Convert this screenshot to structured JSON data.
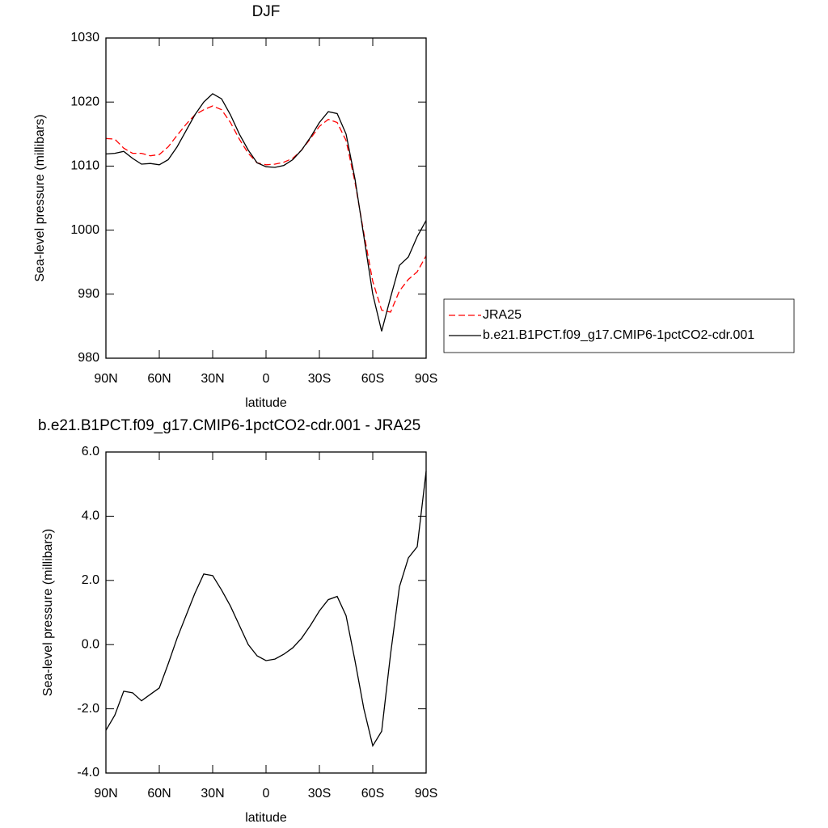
{
  "chart_data": [
    {
      "type": "line",
      "title": "DJF",
      "xlabel": "latitude",
      "ylabel": "Sea-level pressure (millibars)",
      "x": [
        90,
        85,
        80,
        75,
        70,
        65,
        60,
        55,
        50,
        45,
        40,
        35,
        30,
        25,
        20,
        15,
        10,
        5,
        0,
        -5,
        -10,
        -15,
        -20,
        -25,
        -30,
        -35,
        -40,
        -45,
        -50,
        -55,
        -60,
        -65,
        -70,
        -75,
        -80,
        -85,
        -90
      ],
      "series": [
        {
          "name": "JRA25",
          "color": "#ff0000",
          "dash": "dashed",
          "values": [
            1014.3,
            1014.2,
            1012.8,
            1012,
            1012,
            1011.6,
            1011.8,
            1013,
            1014.8,
            1016.5,
            1018,
            1018.8,
            1019.4,
            1018.8,
            1016.8,
            1014.2,
            1012,
            1010.5,
            1010.2,
            1010.3,
            1010.6,
            1011.2,
            1012.5,
            1014.3,
            1016.2,
            1017.3,
            1016.8,
            1014,
            1007.5,
            999.5,
            992,
            987.5,
            987.2,
            990.5,
            992.3,
            993.5,
            996
          ]
        },
        {
          "name": "b.e21.B1PCT.f09_g17.CMIP6-1pctCO2-cdr.001",
          "color": "#000000",
          "dash": "solid",
          "values": [
            1011.9,
            1012,
            1012.3,
            1011.2,
            1010.3,
            1010.4,
            1010.2,
            1011,
            1013,
            1015.5,
            1018,
            1020,
            1021.3,
            1020.5,
            1018,
            1015,
            1012.5,
            1010.5,
            1009.9,
            1009.8,
            1010.1,
            1011,
            1012.5,
            1014.5,
            1016.8,
            1018.5,
            1018.2,
            1015,
            1008,
            999,
            990,
            984.2,
            989.5,
            994.5,
            995.8,
            999,
            1001.5
          ]
        }
      ],
      "xlim": [
        90,
        -90
      ],
      "xticks": [
        {
          "value": 90,
          "label": "90N"
        },
        {
          "value": 60,
          "label": "60N"
        },
        {
          "value": 30,
          "label": "30N"
        },
        0,
        {
          "value": -30,
          "label": "30S"
        },
        {
          "value": -60,
          "label": "60S"
        },
        {
          "value": -90,
          "label": "90S"
        }
      ],
      "ylim": [
        980,
        1030
      ],
      "yticks": [
        980,
        990,
        1000,
        1010,
        1020,
        1030
      ],
      "legend": "right"
    },
    {
      "type": "line",
      "title": "b.e21.B1PCT.f09_g17.CMIP6-1pctCO2-cdr.001 - JRA25",
      "xlabel": "latitude",
      "ylabel": "Sea-level pressure (millibars)",
      "x": [
        90,
        85,
        80,
        75,
        70,
        65,
        60,
        55,
        50,
        45,
        40,
        35,
        30,
        25,
        20,
        15,
        10,
        5,
        0,
        -5,
        -10,
        -15,
        -20,
        -25,
        -30,
        -35,
        -40,
        -45,
        -50,
        -55,
        -60,
        -65,
        -70,
        -75,
        -80,
        -85,
        -90
      ],
      "series": [
        {
          "color": "#000000",
          "dash": "solid",
          "values": [
            -2.67,
            -2.2,
            -1.45,
            -1.5,
            -1.75,
            -1.55,
            -1.35,
            -0.6,
            0.2,
            0.9,
            1.6,
            2.2,
            2.15,
            1.7,
            1.2,
            0.6,
            0.0,
            -0.35,
            -0.5,
            -0.45,
            -0.3,
            -0.1,
            0.2,
            0.6,
            1.05,
            1.4,
            1.5,
            0.9,
            -0.5,
            -2.0,
            -3.15,
            -2.7,
            -0.3,
            1.8,
            2.7,
            3.05,
            5.4
          ]
        }
      ],
      "xlim": [
        90,
        -90
      ],
      "xticks": [
        {
          "value": 90,
          "label": "90N"
        },
        {
          "value": 60,
          "label": "60N"
        },
        {
          "value": 30,
          "label": "30N"
        },
        0,
        {
          "value": -30,
          "label": "30S"
        },
        {
          "value": -60,
          "label": "60S"
        },
        {
          "value": -90,
          "label": "90S"
        }
      ],
      "ylim": [
        -4,
        6
      ],
      "yticks": [
        {
          "value": -4,
          "label": "-4.0"
        },
        {
          "value": -2,
          "label": "-2.0"
        },
        {
          "value": 0,
          "label": "0.0"
        },
        {
          "value": 2,
          "label": "2.0"
        },
        {
          "value": 4,
          "label": "4.0"
        },
        {
          "value": 6,
          "label": "6.0"
        }
      ]
    }
  ]
}
